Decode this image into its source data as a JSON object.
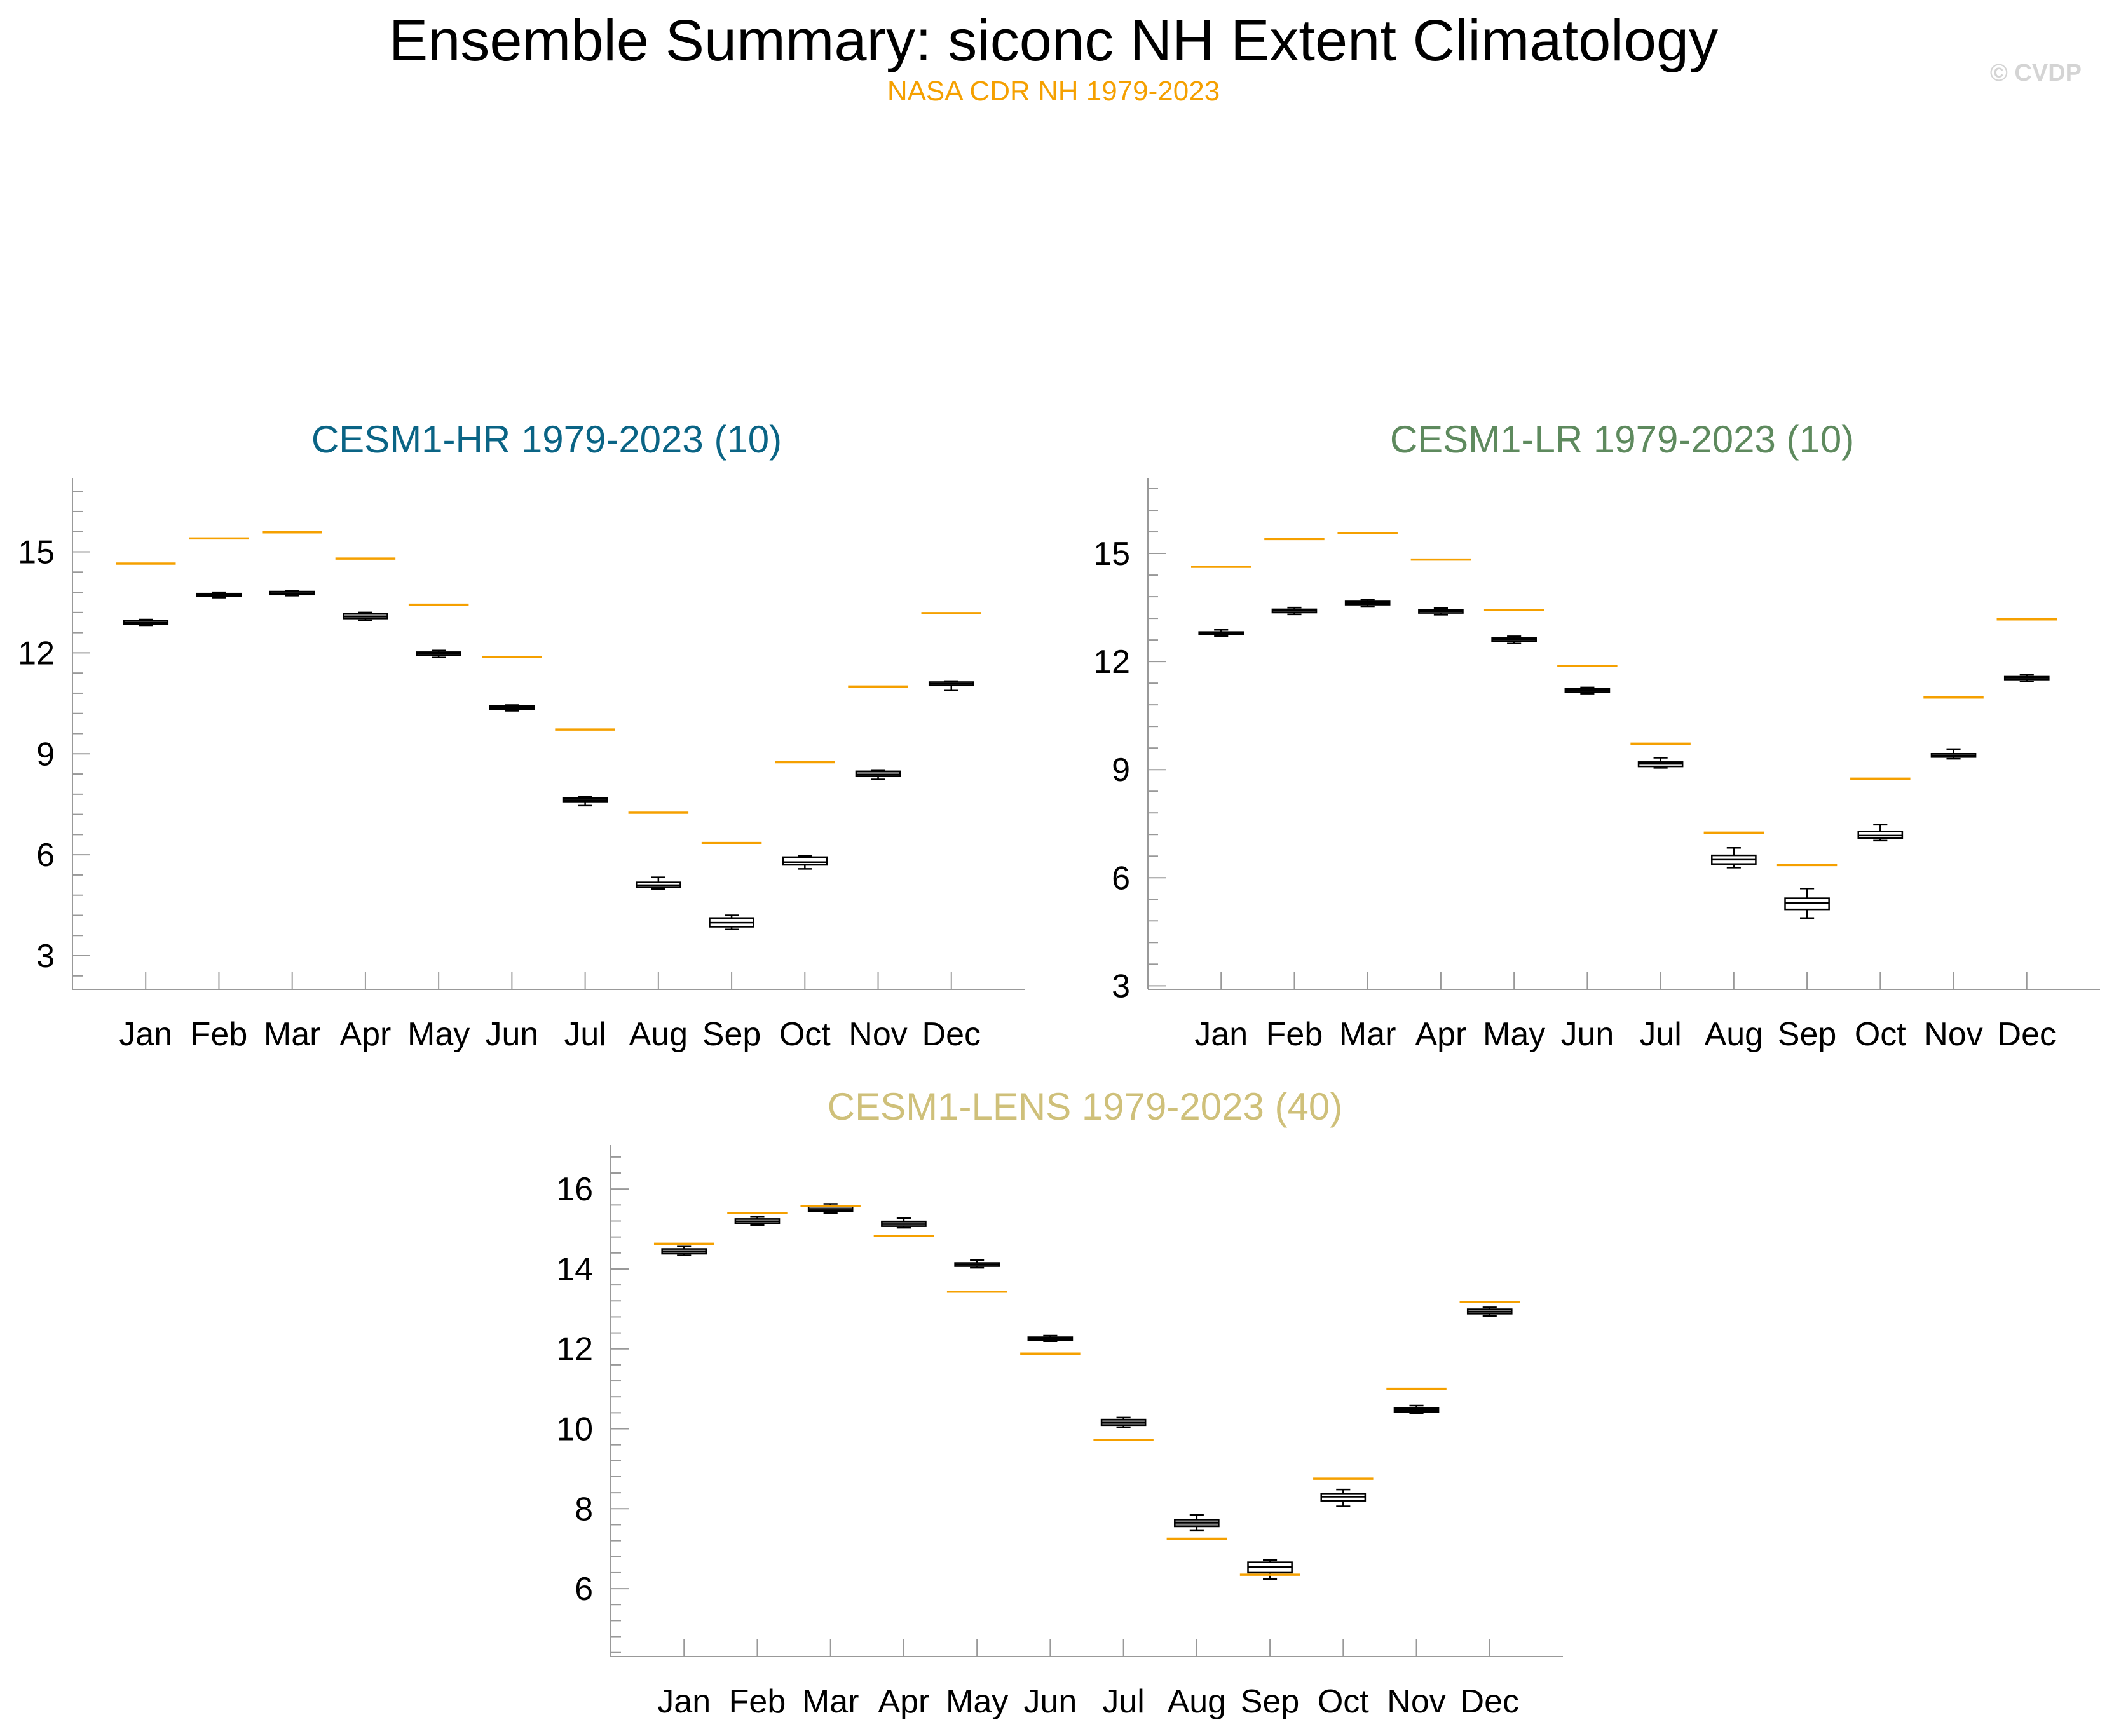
{
  "title": "Ensemble Summary: siconc NH Extent Climatology",
  "subtitle": "NASA CDR NH 1979-2023",
  "watermark": "© CVDP",
  "colors": {
    "observation": "#f5a000",
    "hr_title": "#0a6485",
    "lr_title": "#5e8a5e",
    "lens_title": "#cfc07a",
    "box_dark_fill": "#7f7f7f",
    "box_light_fill": "#ffffff"
  },
  "chart_data": [
    {
      "type": "box",
      "title": "CESM1-HR 1979-2023 (10)",
      "title_color": "#0a6485",
      "categories": [
        "Jan",
        "Feb",
        "Mar",
        "Apr",
        "May",
        "Jun",
        "Jul",
        "Aug",
        "Sep",
        "Oct",
        "Nov",
        "Dec"
      ],
      "ylim": [
        2.0,
        17.2
      ],
      "yticks": [
        3,
        6,
        9,
        12,
        15
      ],
      "observation": {
        "name": "NASA CDR NH 1979-2023",
        "values": [
          14.65,
          15.4,
          15.58,
          14.8,
          13.43,
          11.88,
          9.72,
          7.25,
          6.35,
          8.75,
          11.0,
          13.18
        ]
      },
      "boxes": [
        {
          "min": 12.82,
          "q1": 12.86,
          "median": 12.9,
          "q3": 12.96,
          "max": 12.99,
          "fill": "dark"
        },
        {
          "min": 13.64,
          "q1": 13.68,
          "median": 13.72,
          "q3": 13.76,
          "max": 13.8,
          "fill": "dark"
        },
        {
          "min": 13.7,
          "q1": 13.73,
          "median": 13.77,
          "q3": 13.82,
          "max": 13.85,
          "fill": "dark"
        },
        {
          "min": 12.97,
          "q1": 13.02,
          "median": 13.08,
          "q3": 13.17,
          "max": 13.2,
          "fill": "dark"
        },
        {
          "min": 11.86,
          "q1": 11.92,
          "median": 11.97,
          "q3": 12.02,
          "max": 12.07,
          "fill": "dark"
        },
        {
          "min": 10.28,
          "q1": 10.32,
          "median": 10.37,
          "q3": 10.42,
          "max": 10.45,
          "fill": "dark"
        },
        {
          "min": 7.46,
          "q1": 7.58,
          "median": 7.62,
          "q3": 7.68,
          "max": 7.72,
          "fill": "dark"
        },
        {
          "min": 4.98,
          "q1": 5.03,
          "median": 5.1,
          "q3": 5.18,
          "max": 5.33,
          "fill": "light"
        },
        {
          "min": 3.78,
          "q1": 3.86,
          "median": 3.98,
          "q3": 4.12,
          "max": 4.2,
          "fill": "light"
        },
        {
          "min": 5.58,
          "q1": 5.7,
          "median": 5.78,
          "q3": 5.93,
          "max": 5.97,
          "fill": "light"
        },
        {
          "min": 8.24,
          "q1": 8.33,
          "median": 8.38,
          "q3": 8.48,
          "max": 8.52,
          "fill": "dark"
        },
        {
          "min": 10.88,
          "q1": 11.03,
          "median": 11.08,
          "q3": 11.13,
          "max": 11.16,
          "fill": "dark"
        }
      ]
    },
    {
      "type": "box",
      "title": "CESM1-LR 1979-2023 (10)",
      "title_color": "#5e8a5e",
      "categories": [
        "Jan",
        "Feb",
        "Mar",
        "Apr",
        "May",
        "Jun",
        "Jul",
        "Aug",
        "Sep",
        "Oct",
        "Nov",
        "Dec"
      ],
      "ylim": [
        2.9,
        17.1
      ],
      "yticks": [
        3,
        6,
        9,
        12,
        15
      ],
      "observation": {
        "name": "NASA CDR NH 1979-2023",
        "values": [
          14.63,
          15.4,
          15.57,
          14.83,
          13.43,
          11.88,
          9.72,
          7.25,
          6.35,
          8.75,
          11.0,
          13.17
        ]
      },
      "boxes": [
        {
          "min": 12.71,
          "q1": 12.75,
          "median": 12.79,
          "q3": 12.82,
          "max": 12.88,
          "fill": "dark"
        },
        {
          "min": 13.31,
          "q1": 13.36,
          "median": 13.41,
          "q3": 13.45,
          "max": 13.5,
          "fill": "dark"
        },
        {
          "min": 13.52,
          "q1": 13.58,
          "median": 13.63,
          "q3": 13.67,
          "max": 13.71,
          "fill": "dark"
        },
        {
          "min": 13.3,
          "q1": 13.35,
          "median": 13.4,
          "q3": 13.44,
          "max": 13.48,
          "fill": "dark"
        },
        {
          "min": 12.5,
          "q1": 12.56,
          "median": 12.61,
          "q3": 12.65,
          "max": 12.7,
          "fill": "dark"
        },
        {
          "min": 11.11,
          "q1": 11.15,
          "median": 11.2,
          "q3": 11.24,
          "max": 11.28,
          "fill": "dark"
        },
        {
          "min": 9.05,
          "q1": 9.09,
          "median": 9.16,
          "q3": 9.21,
          "max": 9.33,
          "fill": "light"
        },
        {
          "min": 6.28,
          "q1": 6.38,
          "median": 6.5,
          "q3": 6.62,
          "max": 6.83,
          "fill": "light"
        },
        {
          "min": 4.88,
          "q1": 5.12,
          "median": 5.3,
          "q3": 5.43,
          "max": 5.7,
          "fill": "light"
        },
        {
          "min": 7.03,
          "q1": 7.1,
          "median": 7.17,
          "q3": 7.28,
          "max": 7.47,
          "fill": "light"
        },
        {
          "min": 9.3,
          "q1": 9.35,
          "median": 9.39,
          "q3": 9.44,
          "max": 9.57,
          "fill": "dark"
        },
        {
          "min": 11.45,
          "q1": 11.5,
          "median": 11.55,
          "q3": 11.58,
          "max": 11.63,
          "fill": "dark"
        }
      ]
    },
    {
      "type": "box",
      "title": "CESM1-LENS 1979-2023 (40)",
      "title_color": "#cfc07a",
      "categories": [
        "Jan",
        "Feb",
        "Mar",
        "Apr",
        "May",
        "Jun",
        "Jul",
        "Aug",
        "Sep",
        "Oct",
        "Nov",
        "Dec"
      ],
      "ylim": [
        4.3,
        17.1
      ],
      "yticks": [
        6,
        8,
        10,
        12,
        14,
        16
      ],
      "observation": {
        "name": "NASA CDR NH 1979-2023",
        "values": [
          14.63,
          15.4,
          15.57,
          14.83,
          13.43,
          11.88,
          9.72,
          7.25,
          6.35,
          8.75,
          11.0,
          13.17
        ]
      },
      "boxes": [
        {
          "min": 14.34,
          "q1": 14.38,
          "median": 14.44,
          "q3": 14.5,
          "max": 14.56,
          "fill": "dark"
        },
        {
          "min": 15.1,
          "q1": 15.14,
          "median": 15.19,
          "q3": 15.25,
          "max": 15.3,
          "fill": "dark"
        },
        {
          "min": 15.4,
          "q1": 15.45,
          "median": 15.5,
          "q3": 15.58,
          "max": 15.63,
          "fill": "dark"
        },
        {
          "min": 15.03,
          "q1": 15.07,
          "median": 15.12,
          "q3": 15.19,
          "max": 15.27,
          "fill": "dark"
        },
        {
          "min": 14.03,
          "q1": 14.07,
          "median": 14.11,
          "q3": 14.15,
          "max": 14.22,
          "fill": "dark"
        },
        {
          "min": 12.19,
          "q1": 12.22,
          "median": 12.26,
          "q3": 12.29,
          "max": 12.33,
          "fill": "dark"
        },
        {
          "min": 10.04,
          "q1": 10.09,
          "median": 10.15,
          "q3": 10.23,
          "max": 10.28,
          "fill": "dark"
        },
        {
          "min": 7.45,
          "q1": 7.56,
          "median": 7.65,
          "q3": 7.73,
          "max": 7.85,
          "fill": "dark"
        },
        {
          "min": 6.24,
          "q1": 6.4,
          "median": 6.54,
          "q3": 6.66,
          "max": 6.72,
          "fill": "light"
        },
        {
          "min": 8.06,
          "q1": 8.2,
          "median": 8.3,
          "q3": 8.38,
          "max": 8.48,
          "fill": "light"
        },
        {
          "min": 10.38,
          "q1": 10.42,
          "median": 10.47,
          "q3": 10.52,
          "max": 10.58,
          "fill": "dark"
        },
        {
          "min": 12.82,
          "q1": 12.88,
          "median": 12.93,
          "q3": 12.99,
          "max": 13.04,
          "fill": "dark"
        }
      ]
    }
  ]
}
